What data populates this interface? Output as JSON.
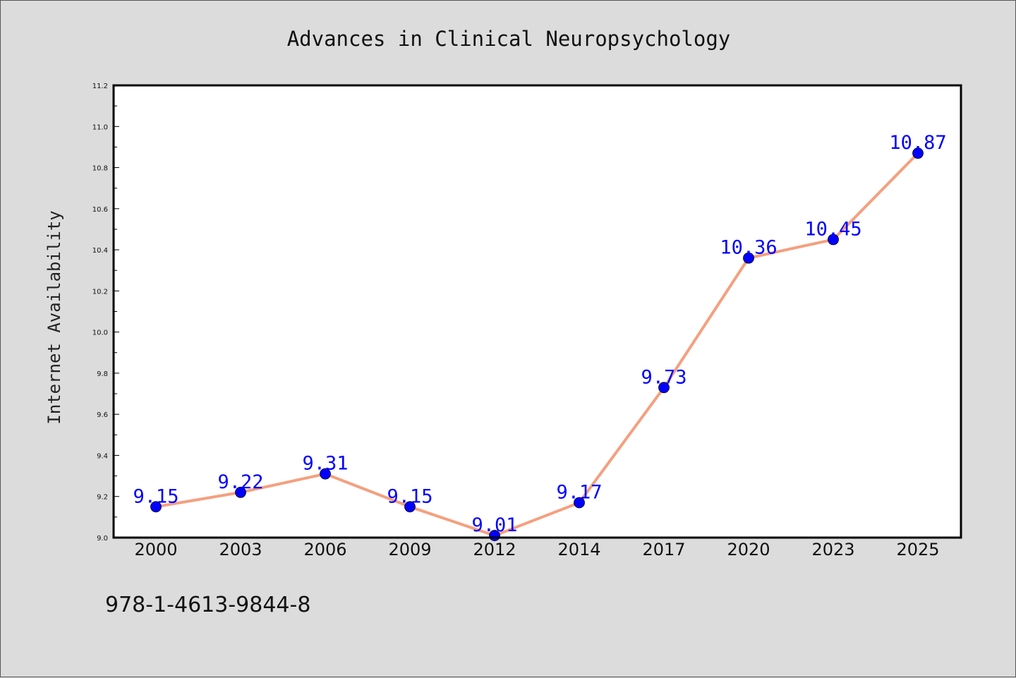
{
  "chart_data": {
    "type": "line",
    "title": "Advances in Clinical Neuropsychology",
    "xlabel": "",
    "ylabel": "Internet Availability",
    "categories": [
      "2000",
      "2003",
      "2006",
      "2009",
      "2012",
      "2014",
      "2017",
      "2020",
      "2023",
      "2025"
    ],
    "values": [
      9.15,
      9.22,
      9.31,
      9.15,
      9.01,
      9.17,
      9.73,
      10.36,
      10.45,
      10.87
    ],
    "data_labels": [
      "9.15",
      "9.22",
      "9.31",
      "9.15",
      "9.01",
      "9.17",
      "9.73",
      "10.36",
      "10.45",
      "10.87"
    ],
    "ylim": [
      9.0,
      11.2
    ],
    "yticks": [
      "9.0",
      "9.2",
      "9.4",
      "9.6",
      "9.8",
      "10.0",
      "10.2",
      "10.4",
      "10.6",
      "10.8",
      "11.0",
      "11.2"
    ],
    "grid": false,
    "legend": "none",
    "colors": {
      "line": "#f4a07f",
      "marker": "#0000ff",
      "data_label": "#0000ff",
      "background": "#dcdcdc",
      "plot_background": "#ffffff"
    }
  },
  "footer": {
    "isbn": "978-1-4613-9844-8"
  }
}
